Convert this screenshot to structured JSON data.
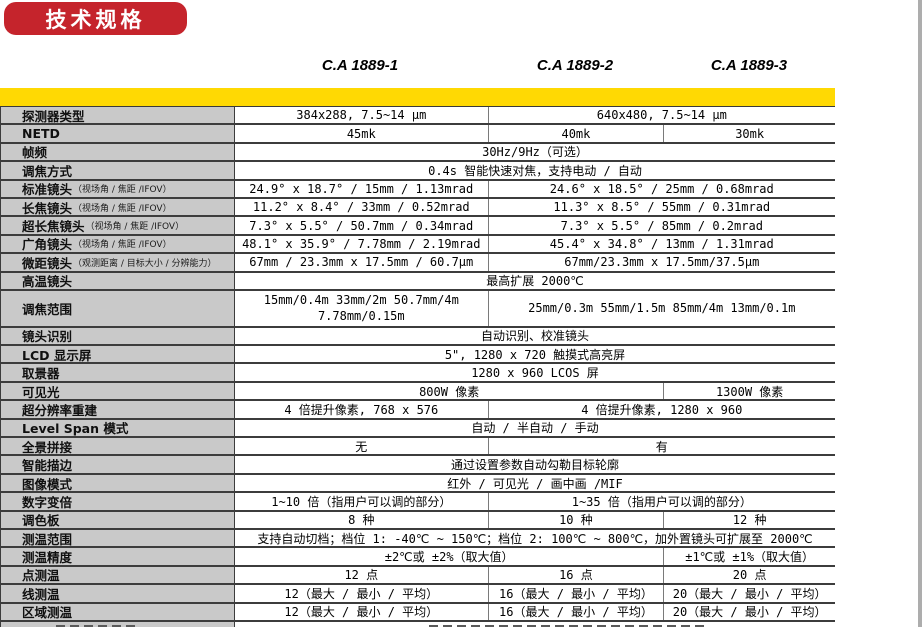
{
  "header": {
    "badge": "技术规格",
    "models": [
      "C.A 1889-1",
      "C.A 1889-2",
      "C.A 1889-3"
    ]
  },
  "colors": {
    "badge_red": "#c5242c",
    "accent_yellow": "#ffd903",
    "label_gray": "#c9c9c9",
    "border_dark": "#3c3c3c"
  },
  "table": {
    "rows": [
      {
        "label": "探测器类型",
        "cells": [
          {
            "span": 1,
            "text": "384x288, 7.5~14 μm"
          },
          {
            "span": 2,
            "text": "640x480, 7.5~14 μm"
          }
        ]
      },
      {
        "label": "NETD",
        "cells": [
          {
            "span": 1,
            "text": "45mk"
          },
          {
            "span": 1,
            "text": "40mk"
          },
          {
            "span": 1,
            "text": "30mk"
          }
        ]
      },
      {
        "label": "帧频",
        "cells": [
          {
            "span": 3,
            "text": "30Hz/9Hz（可选）"
          }
        ]
      },
      {
        "label": "调焦方式",
        "cells": [
          {
            "span": 3,
            "text": "0.4s 智能快速对焦，支持电动 / 自动"
          }
        ]
      },
      {
        "label": "标准镜头",
        "note": "（视场角 / 焦距 /IFOV）",
        "cells": [
          {
            "span": 1,
            "text": "24.9° x 18.7° / 15mm / 1.13mrad"
          },
          {
            "span": 2,
            "text": "24.6° x 18.5° / 25mm / 0.68mrad"
          }
        ]
      },
      {
        "label": "长焦镜头",
        "note": "（视场角 / 焦距 /IFOV）",
        "cells": [
          {
            "span": 1,
            "text": "11.2° x 8.4° / 33mm / 0.52mrad"
          },
          {
            "span": 2,
            "text": "11.3° x 8.5° / 55mm / 0.31mrad"
          }
        ]
      },
      {
        "label": "超长焦镜头",
        "note": "（视场角 / 焦距 /IFOV）",
        "cells": [
          {
            "span": 1,
            "text": "7.3° x 5.5° / 50.7mm / 0.34mrad"
          },
          {
            "span": 2,
            "text": "7.3° x 5.5° / 85mm / 0.2mrad"
          }
        ]
      },
      {
        "label": "广角镜头",
        "note": "（视场角 / 焦距 /IFOV）",
        "cells": [
          {
            "span": 1,
            "text": "48.1° x 35.9° / 7.78mm / 2.19mrad"
          },
          {
            "span": 2,
            "text": "45.4° x 34.8° / 13mm / 1.31mrad"
          }
        ]
      },
      {
        "label": "微距镜头",
        "note": "（观测距离 / 目标大小 / 分辨能力）",
        "cells": [
          {
            "span": 1,
            "text": "67mm / 23.3mm x 17.5mm / 60.7μm"
          },
          {
            "span": 2,
            "text": "67mm/23.3mm x 17.5mm/37.5μm"
          }
        ]
      },
      {
        "label": "高温镜头",
        "cells": [
          {
            "span": 3,
            "text": "最高扩展 2000℃"
          }
        ]
      },
      {
        "label": "调焦范围",
        "h": 2,
        "cells": [
          {
            "span": 1,
            "lines": [
              "15mm/0.4m 33mm/2m 50.7mm/4m",
              "7.78mm/0.15m"
            ]
          },
          {
            "span": 2,
            "text": "25mm/0.3m 55mm/1.5m 85mm/4m 13mm/0.1m"
          }
        ]
      },
      {
        "label": "镜头识别",
        "cells": [
          {
            "span": 3,
            "text": "自动识别、校准镜头"
          }
        ]
      },
      {
        "label": "LCD 显示屏",
        "cells": [
          {
            "span": 3,
            "text": "5\", 1280 x 720 触摸式高亮屏"
          }
        ]
      },
      {
        "label": "取景器",
        "cells": [
          {
            "span": 3,
            "text": "1280 x 960 LCOS 屏"
          }
        ]
      },
      {
        "label": "可见光",
        "cells": [
          {
            "span": 2,
            "text": "800W 像素"
          },
          {
            "span": 1,
            "text": "1300W 像素"
          }
        ]
      },
      {
        "label": "超分辨率重建",
        "cells": [
          {
            "span": 1,
            "text": "4 倍提升像素, 768 x 576"
          },
          {
            "span": 2,
            "text": "4 倍提升像素, 1280 x 960"
          }
        ]
      },
      {
        "label": "Level Span 模式",
        "cells": [
          {
            "span": 3,
            "text": "自动 / 半自动 / 手动"
          }
        ]
      },
      {
        "label": "全景拼接",
        "cells": [
          {
            "span": 1,
            "text": "无"
          },
          {
            "span": 2,
            "text": "有"
          }
        ]
      },
      {
        "label": "智能描边",
        "cells": [
          {
            "span": 3,
            "text": "通过设置参数自动勾勒目标轮廓"
          }
        ]
      },
      {
        "label": "图像模式",
        "cells": [
          {
            "span": 3,
            "text": "红外 / 可见光 / 画中画 /MIF"
          }
        ]
      },
      {
        "label": "数字变倍",
        "cells": [
          {
            "span": 1,
            "text": "1~10 倍（指用户可以调的部分）"
          },
          {
            "span": 2,
            "text": "1~35 倍（指用户可以调的部分）"
          }
        ]
      },
      {
        "label": "调色板",
        "cells": [
          {
            "span": 1,
            "text": "8 种"
          },
          {
            "span": 1,
            "text": "10 种"
          },
          {
            "span": 1,
            "text": "12 种"
          }
        ]
      },
      {
        "label": "测温范围",
        "cells": [
          {
            "span": 3,
            "text": "支持自动切档；档位 1: -40℃ ~ 150℃；档位 2: 100℃ ~ 800℃，加外置镜头可扩展至 2000℃"
          }
        ]
      },
      {
        "label": "测温精度",
        "cells": [
          {
            "span": 2,
            "text": "±2℃或 ±2%（取大值）"
          },
          {
            "span": 1,
            "text": "±1℃或 ±1%（取大值）"
          }
        ]
      },
      {
        "label": "点测温",
        "cells": [
          {
            "span": 1,
            "text": "12 点"
          },
          {
            "span": 1,
            "text": "16 点"
          },
          {
            "span": 1,
            "text": "20 点"
          }
        ]
      },
      {
        "label": "线测温",
        "cells": [
          {
            "span": 1,
            "text": "12（最大 / 最小 / 平均）"
          },
          {
            "span": 1,
            "text": "16（最大 / 最小 / 平均）"
          },
          {
            "span": 1,
            "text": "20（最大 / 最小 / 平均）"
          }
        ]
      },
      {
        "label": "区域测温",
        "cells": [
          {
            "span": 1,
            "text": "12（最大 / 最小 / 平均）"
          },
          {
            "span": 1,
            "text": "16（最大 / 最小 / 平均）"
          },
          {
            "span": 1,
            "text": "20（最大 / 最小 / 平均）"
          }
        ]
      },
      {
        "clipped": true,
        "label": "",
        "cells": [
          {
            "span": 3,
            "text": ""
          }
        ]
      }
    ]
  }
}
